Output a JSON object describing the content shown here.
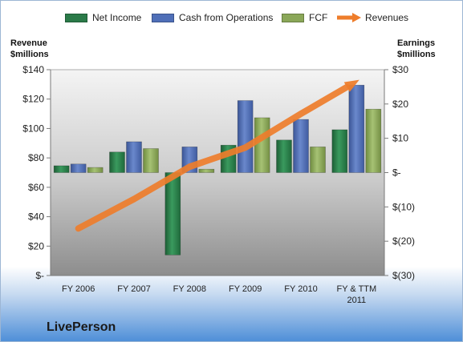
{
  "chart_data": {
    "type": "bar",
    "company": "LivePerson",
    "legend": {
      "position": "top",
      "entries": [
        {
          "label": "Net Income",
          "color": "#2a7a48"
        },
        {
          "label": "Cash from Operations",
          "color": "#4f6fb8"
        },
        {
          "label": "FCF",
          "color": "#8aa758"
        },
        {
          "label": "Revenues",
          "color": "#ee7d2b"
        }
      ]
    },
    "left_axis": {
      "title_line1": "Revenue",
      "title_line2": "$millions",
      "ylim": [
        0,
        140
      ],
      "ticks": [
        0,
        20,
        40,
        60,
        80,
        100,
        120,
        140
      ],
      "tick_labels": [
        "$-",
        "$20",
        "$40",
        "$60",
        "$80",
        "$100",
        "$120",
        "$140"
      ]
    },
    "right_axis": {
      "title_line1": "Earnings",
      "title_line2": "$millions",
      "ylim": [
        -30,
        30
      ],
      "ticks": [
        -30,
        -20,
        -10,
        0,
        10,
        20,
        30
      ],
      "tick_labels": [
        "$(30)",
        "$(20)",
        "$(10)",
        "$-",
        "$10",
        "$20",
        "$30"
      ]
    },
    "categories": [
      [
        "FY 2006"
      ],
      [
        "FY 2007"
      ],
      [
        "FY 2008"
      ],
      [
        "FY 2009"
      ],
      [
        "FY 2010"
      ],
      [
        "FY & TTM",
        "2011"
      ]
    ],
    "series": [
      {
        "name": "Net Income",
        "axis": "right",
        "color": "#2a7a48",
        "values": [
          2,
          6,
          -24,
          8,
          9.5,
          12.5
        ]
      },
      {
        "name": "Cash from Operations",
        "axis": "right",
        "color": "#4f6fb8",
        "values": [
          2.5,
          9,
          7.5,
          21,
          15.5,
          25.5
        ]
      },
      {
        "name": "FCF",
        "axis": "right",
        "color": "#8aa758",
        "values": [
          1.5,
          7,
          1,
          16,
          7.5,
          18.5
        ]
      }
    ],
    "line_series": {
      "name": "Revenues",
      "axis": "left",
      "color": "#ee7d2b",
      "values": [
        32,
        52,
        74,
        87,
        110,
        132
      ]
    },
    "grid": false
  }
}
